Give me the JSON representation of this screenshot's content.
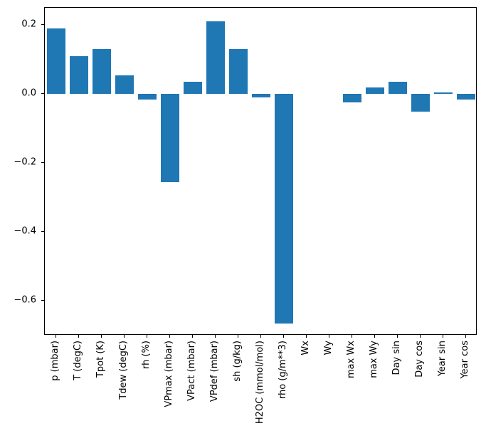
{
  "chart_data": {
    "type": "bar",
    "title": "",
    "xlabel": "",
    "ylabel": "",
    "categories": [
      "p (mbar)",
      "T (degC)",
      "Tpot (K)",
      "Tdew (degC)",
      "rh (%)",
      "VPmax (mbar)",
      "VPact (mbar)",
      "VPdef (mbar)",
      "sh (g/kg)",
      "H2OC (mmol/mol)",
      "rho (g/m**3)",
      "Wx",
      "Wy",
      "max Wx",
      "max Wy",
      "Day sin",
      "Day cos",
      "Year sin",
      "Year cos"
    ],
    "values": [
      0.19,
      0.11,
      0.13,
      0.055,
      -0.015,
      -0.255,
      0.035,
      0.21,
      0.13,
      -0.01,
      -0.665,
      0.0,
      0.0,
      -0.025,
      0.02,
      0.035,
      -0.05,
      0.005,
      -0.015
    ],
    "ylim": [
      -0.7,
      0.25
    ],
    "yticks": [
      0.2,
      0.0,
      -0.2,
      -0.4,
      -0.6
    ],
    "bar_color": "#1f77b4",
    "bar_width_fraction": 0.8,
    "grid": false,
    "legend": null
  }
}
